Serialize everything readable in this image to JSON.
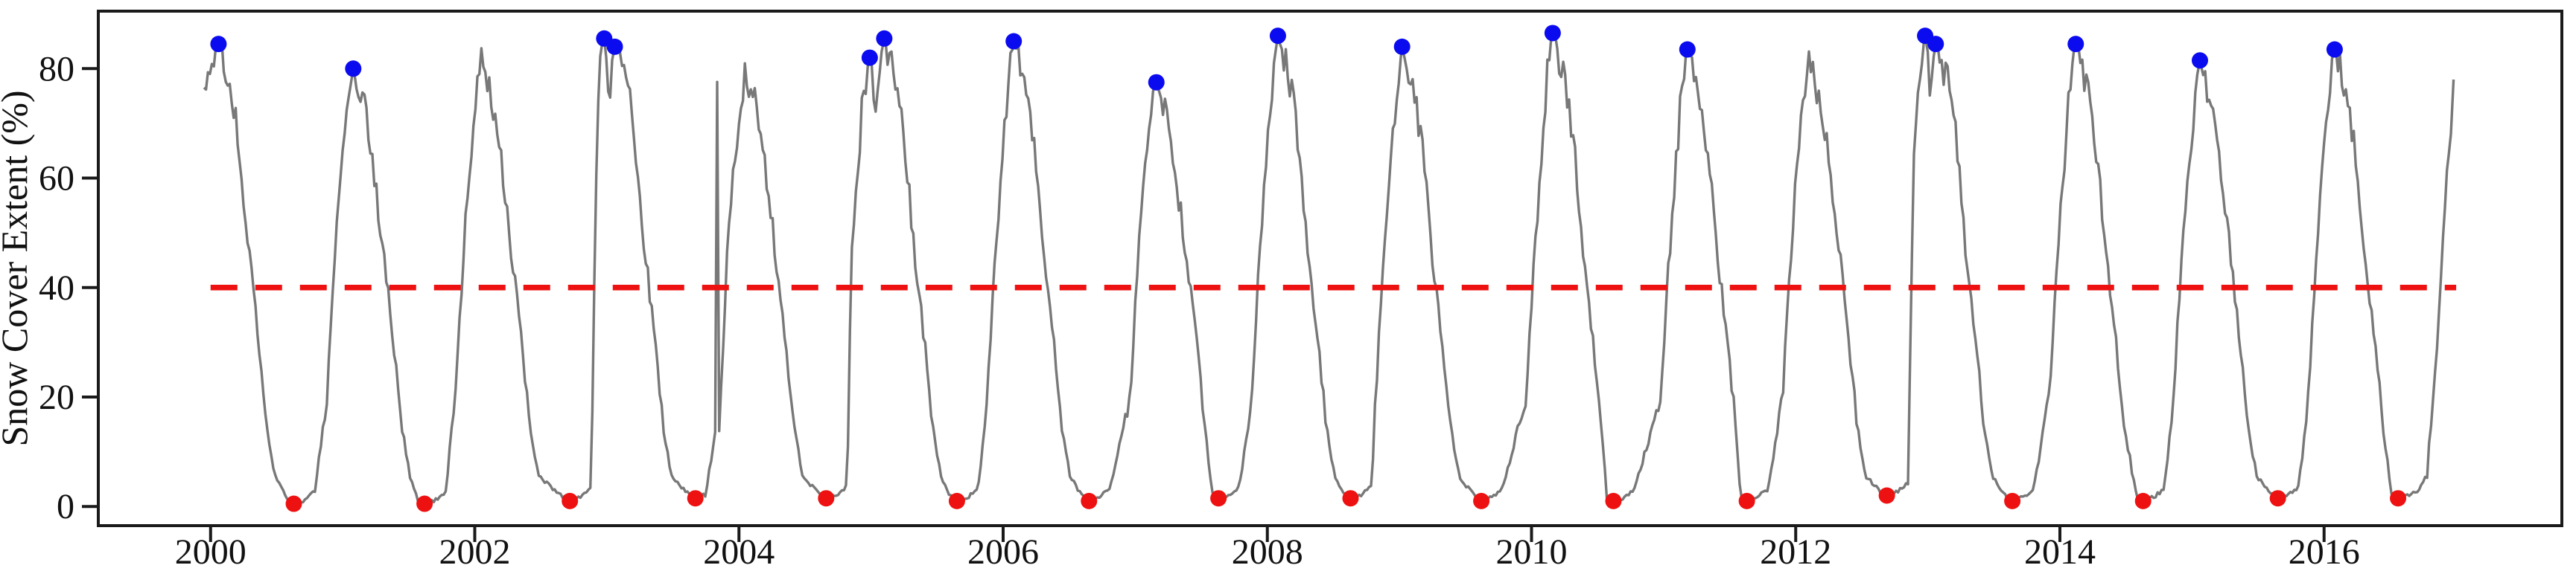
{
  "chart_data": {
    "type": "line",
    "title": "",
    "xlabel": "",
    "ylabel": "Snow Cover Extent (%)",
    "xlim": [
      1999.15,
      2017.8
    ],
    "ylim": [
      -3.5,
      90.5
    ],
    "x_ticks": [
      2000,
      2002,
      2004,
      2006,
      2008,
      2010,
      2012,
      2014,
      2016
    ],
    "y_ticks": [
      0,
      20,
      40,
      60,
      80
    ],
    "grid": false,
    "legend": "none",
    "colors": {
      "series_line": "#787878",
      "maxima_marker": "#0b0bf0",
      "minima_marker": "#ee1111",
      "threshold_line": "#ee1111",
      "axis": "#1a1a1a"
    },
    "threshold_line": {
      "y": 40,
      "style": "dashed",
      "x_start": 2000.0,
      "x_end": 2017.0
    },
    "series_name": "Snow Cover Extent (%)",
    "maxima_markers": [
      [
        2000.06,
        84.5
      ],
      [
        2001.08,
        80.0
      ],
      [
        2002.98,
        85.5
      ],
      [
        2003.06,
        84.0
      ],
      [
        2004.99,
        82.0
      ],
      [
        2005.1,
        85.5
      ],
      [
        2006.08,
        85.0
      ],
      [
        2007.16,
        77.5
      ],
      [
        2008.08,
        86.0
      ],
      [
        2009.02,
        84.0
      ],
      [
        2010.16,
        86.5
      ],
      [
        2011.18,
        83.5
      ],
      [
        2012.98,
        86.0
      ],
      [
        2013.06,
        84.5
      ],
      [
        2014.12,
        84.5
      ],
      [
        2015.06,
        81.5
      ],
      [
        2016.08,
        83.5
      ]
    ],
    "unmarked_peaks": [
      [
        2002.05,
        81.5
      ],
      [
        2004.05,
        80.0
      ],
      [
        2012.1,
        82.0
      ]
    ],
    "minima_markers": [
      [
        2000.63,
        0.5
      ],
      [
        2001.62,
        0.5
      ],
      [
        2002.72,
        1.0
      ],
      [
        2003.67,
        1.5
      ],
      [
        2004.66,
        1.5
      ],
      [
        2005.65,
        1.0
      ],
      [
        2006.65,
        1.0
      ],
      [
        2007.63,
        1.5
      ],
      [
        2008.63,
        1.5
      ],
      [
        2009.62,
        1.0
      ],
      [
        2010.62,
        1.0
      ],
      [
        2011.63,
        1.0
      ],
      [
        2012.69,
        2.0
      ],
      [
        2013.64,
        1.0
      ],
      [
        2014.63,
        1.0
      ],
      [
        2015.65,
        1.5
      ],
      [
        2016.56,
        1.5
      ]
    ],
    "spikes": [
      [
        2003.835,
        77.5
      ]
    ],
    "data_start": {
      "t": 1999.95,
      "v": 75
    },
    "tail_anchors": [
      [
        2016.7,
        2.5
      ],
      [
        2016.78,
        6
      ],
      [
        2016.86,
        32
      ],
      [
        2016.93,
        60
      ],
      [
        2016.98,
        78
      ]
    ]
  }
}
